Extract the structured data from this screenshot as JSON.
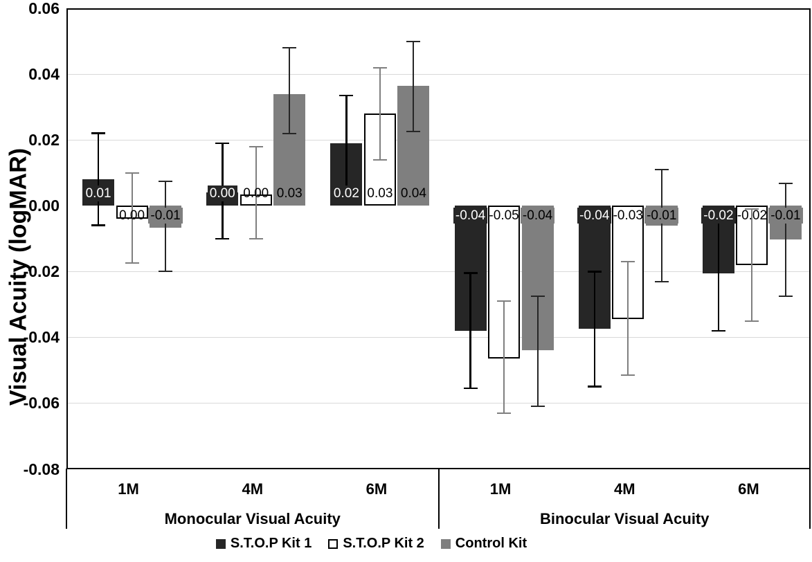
{
  "chart_data": {
    "type": "bar",
    "title": "",
    "ylabel": "Visual Acuity (logMAR)",
    "ylim": [
      -0.08,
      0.06
    ],
    "grid": true,
    "legend_position": "bottom",
    "yticks": [
      {
        "value": 0.06,
        "label": "0.06"
      },
      {
        "value": 0.04,
        "label": "0.04"
      },
      {
        "value": 0.02,
        "label": "0.02"
      },
      {
        "value": 0.0,
        "label": "0.00"
      },
      {
        "value": -0.02,
        "label": "-0.02"
      },
      {
        "value": -0.04,
        "label": "-0.04"
      },
      {
        "value": -0.06,
        "label": "-0.06"
      },
      {
        "value": -0.08,
        "label": "-0.08"
      }
    ],
    "gridline_values": [
      0.04,
      0.02,
      -0.02,
      -0.04,
      -0.06
    ],
    "categories": [
      "1M",
      "4M",
      "6M",
      "1M",
      "4M",
      "6M"
    ],
    "groups": [
      {
        "label": "Monocular Visual Acuity",
        "span": [
          0,
          2
        ]
      },
      {
        "label": "Binocular Visual Acuity",
        "span": [
          3,
          5
        ]
      }
    ],
    "series": [
      {
        "name": "S.T.O.P Kit 1",
        "fill": "#262626",
        "border": null,
        "label_bg": "#262626",
        "text_color": "#ffffff",
        "err_color": "#000000",
        "err_width": 2.5,
        "values": [
          0.008,
          0.004,
          0.019,
          -0.038,
          -0.0375,
          -0.0205
        ],
        "labels": [
          "0.01",
          "0.00",
          "0.02",
          "-0.04",
          "-0.04",
          "-0.02"
        ],
        "err_hi": [
          0.022,
          0.019,
          0.0335,
          -0.0205,
          -0.02,
          -0.004
        ],
        "err_lo": [
          -0.006,
          -0.01,
          0.005,
          -0.0555,
          -0.055,
          -0.038
        ]
      },
      {
        "name": "S.T.O.P Kit 2",
        "fill": "#ffffff",
        "border": "#000000",
        "label_bg": "transparent",
        "text_color": "#000000",
        "err_color": "#7f7f7f",
        "err_width": 2,
        "values": [
          -0.004,
          0.0035,
          0.028,
          -0.0465,
          -0.0345,
          -0.018
        ],
        "labels": [
          "0.00",
          "0.00",
          "0.03",
          "-0.05",
          "-0.03",
          "-0.02"
        ],
        "err_hi": [
          0.01,
          0.018,
          0.042,
          -0.029,
          -0.017,
          -0.001
        ],
        "err_lo": [
          -0.0175,
          -0.01,
          0.014,
          -0.063,
          -0.0515,
          -0.035
        ]
      },
      {
        "name": "Control Kit",
        "fill": "#7f7f7f",
        "border": null,
        "label_bg": "#7f7f7f",
        "text_color": "#000000",
        "err_color": "#262626",
        "err_width": 2,
        "values": [
          -0.0067,
          0.034,
          0.0365,
          -0.044,
          -0.006,
          -0.0103
        ],
        "labels": [
          "-0.01",
          "0.03",
          "0.04",
          "-0.04",
          "-0.01",
          "-0.01"
        ],
        "err_hi": [
          0.0075,
          0.048,
          0.05,
          -0.0275,
          0.011,
          0.0067
        ],
        "err_lo": [
          -0.02,
          0.022,
          0.0225,
          -0.061,
          -0.023,
          -0.0275
        ]
      }
    ]
  },
  "colors": {
    "background": "#ffffff",
    "gridline": "#d9d9d9",
    "axis": "#000000"
  }
}
